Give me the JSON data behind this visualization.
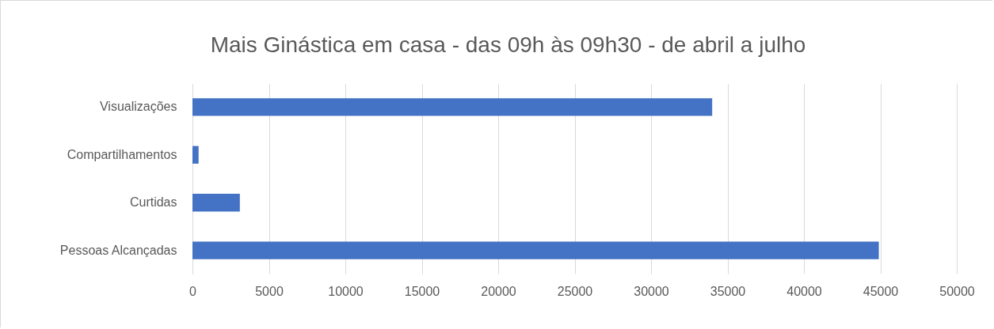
{
  "chart_data": {
    "type": "bar",
    "orientation": "horizontal",
    "title": "Mais Ginástica em casa  -  das 09h às 09h30 - de abril a julho",
    "categories": [
      "Visualizações",
      "Compartilhamentos",
      "Curtidas",
      "Pessoas Alcançadas"
    ],
    "values": [
      34000,
      400,
      3100,
      44900
    ],
    "color": "#4472c4",
    "xlim": [
      0,
      50000
    ],
    "xticks": [
      0,
      5000,
      10000,
      15000,
      20000,
      25000,
      30000,
      35000,
      40000,
      45000,
      50000
    ],
    "grid": "x"
  }
}
